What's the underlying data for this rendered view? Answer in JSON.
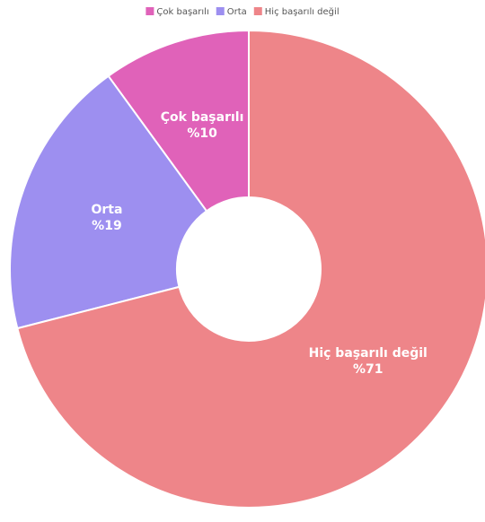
{
  "chart_data": {
    "type": "donut",
    "categories": [
      "Çok başarılı",
      "Orta",
      "Hiç başarılı değil"
    ],
    "values": [
      10,
      19,
      71
    ],
    "value_labels": [
      "%10",
      "%19",
      "%71"
    ],
    "colors": [
      "#e062b9",
      "#9d8ff0",
      "#ee8589"
    ],
    "legend": "top"
  }
}
